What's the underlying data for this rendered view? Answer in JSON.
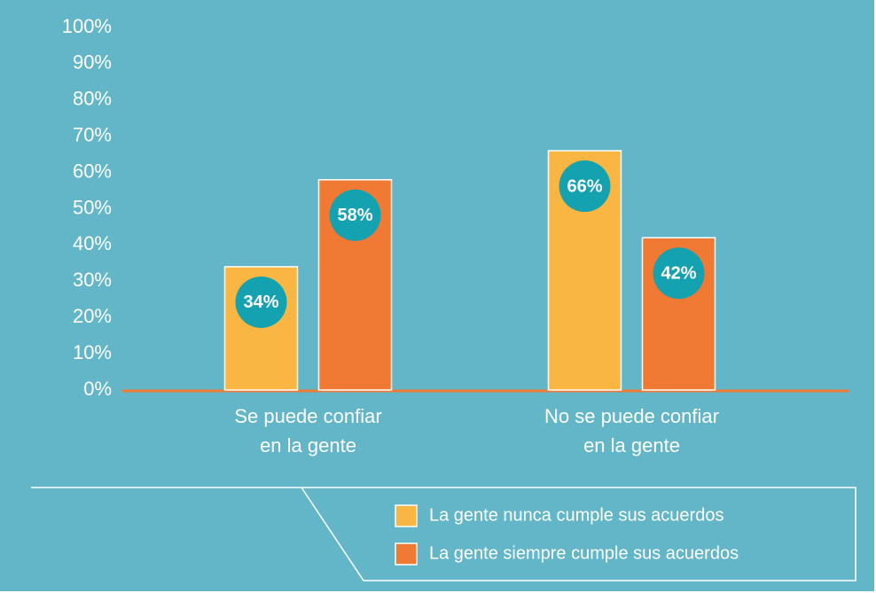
{
  "chart_data": {
    "type": "bar",
    "categories": [
      [
        "Se puede confiar",
        "en la gente"
      ],
      [
        "No se puede confiar",
        "en la gente"
      ]
    ],
    "series": [
      {
        "name": "La gente nunca cumple sus acuerdos",
        "color": "#f9b642",
        "values": [
          34,
          66
        ],
        "value_labels": [
          "34%",
          "66%"
        ]
      },
      {
        "name": "La gente siempre cumple sus acuerdos",
        "color": "#f07a33",
        "values": [
          58,
          42
        ],
        "value_labels": [
          "58%",
          "42%"
        ]
      }
    ],
    "ylim": [
      0,
      100
    ],
    "yticks": [
      {
        "value": 0,
        "label": "0%"
      },
      {
        "value": 10,
        "label": "10%"
      },
      {
        "value": 20,
        "label": "20%"
      },
      {
        "value": 30,
        "label": "30%"
      },
      {
        "value": 40,
        "label": "40%"
      },
      {
        "value": 50,
        "label": "50%"
      },
      {
        "value": 60,
        "label": "60%"
      },
      {
        "value": 70,
        "label": "70%"
      },
      {
        "value": 80,
        "label": "80%"
      },
      {
        "value": 90,
        "label": "90%"
      },
      {
        "value": 100,
        "label": "100%"
      }
    ],
    "grid": false
  }
}
